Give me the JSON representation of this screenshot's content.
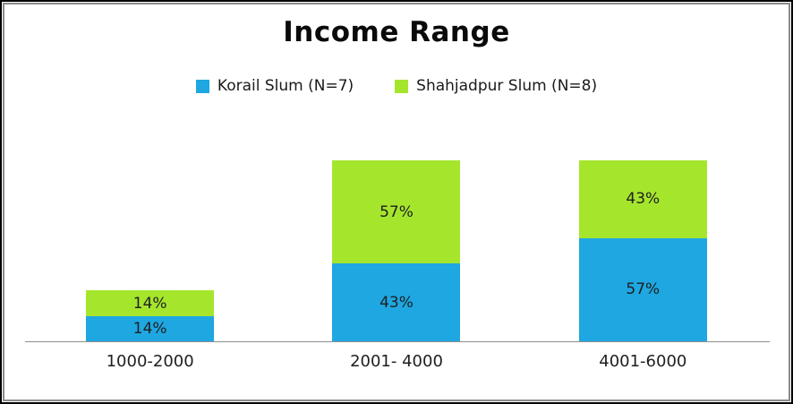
{
  "title": "Income Range",
  "legend": [
    {
      "label": "Korail Slum (N=7)",
      "color": "#1ea7e1"
    },
    {
      "label": "Shahjadpur Slum (N=8)",
      "color": "#a5e62d"
    }
  ],
  "colors": {
    "korail_blue": "#1ea7e1",
    "shahjadpur_green": "#a5e62d",
    "axis_line": "#8f8f8f",
    "text": "#1f1f1f"
  },
  "chart_data": {
    "type": "bar",
    "stacked": true,
    "title": "Income Range",
    "categories": [
      "1000-2000",
      "2001- 4000",
      "4001-6000"
    ],
    "series": [
      {
        "name": "Korail Slum (N=7)",
        "color": "#1ea7e1",
        "values": [
          14,
          43,
          57
        ]
      },
      {
        "name": "Shahjadpur Slum (N=8)",
        "color": "#a5e62d",
        "values": [
          14,
          57,
          43
        ]
      }
    ],
    "value_format": "percent",
    "data_labels": true,
    "legend_position": "top",
    "xlabel": "",
    "ylabel": "",
    "ylim": [
      0,
      100
    ],
    "grid": false
  }
}
